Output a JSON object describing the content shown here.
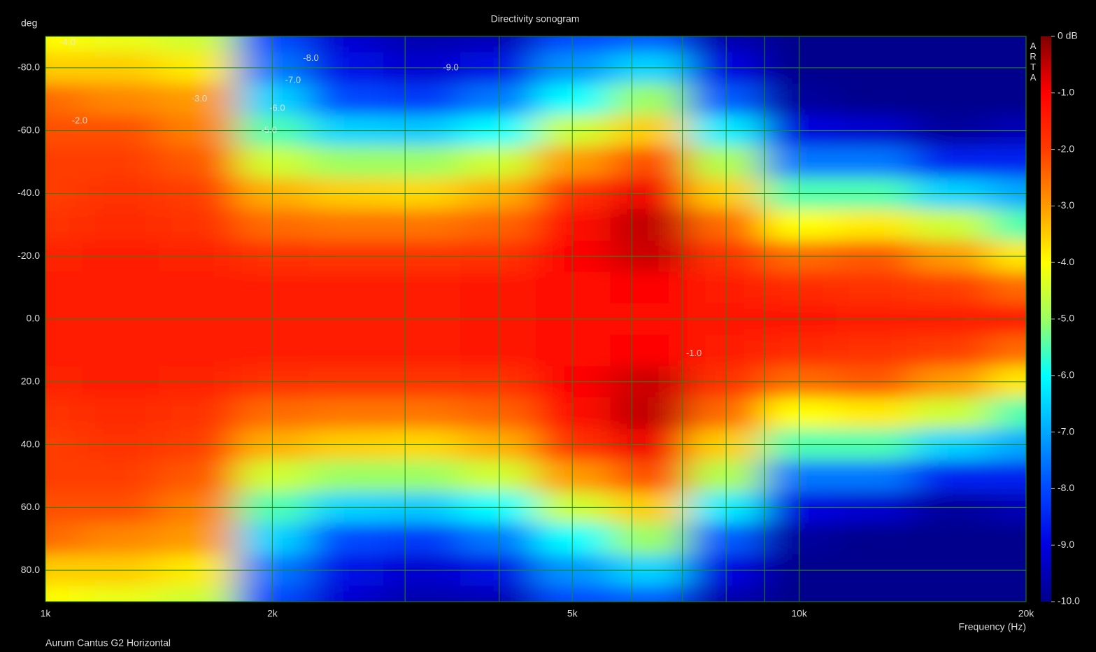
{
  "chart_data": {
    "type": "heatmap",
    "title": "Directivity sonogram",
    "xlabel": "Frequency (Hz)",
    "ylabel": "deg",
    "footnote": "Aurum Cantus G2 Horizontal",
    "watermark": "ARTA",
    "xscale": "log",
    "xlim": [
      1000,
      20000
    ],
    "ylim": [
      -90,
      90
    ],
    "xticks": [
      {
        "value": 1000,
        "label": "1k"
      },
      {
        "value": 2000,
        "label": "2k"
      },
      {
        "value": 5000,
        "label": "5k"
      },
      {
        "value": 10000,
        "label": "10k"
      },
      {
        "value": 20000,
        "label": "20k"
      }
    ],
    "xminor": [
      3000,
      4000,
      6000,
      7000,
      8000,
      9000
    ],
    "yticks": [
      {
        "value": -80,
        "label": "-80.0"
      },
      {
        "value": -60,
        "label": "-60.0"
      },
      {
        "value": -40,
        "label": "-40.0"
      },
      {
        "value": -20,
        "label": "-20.0"
      },
      {
        "value": 0,
        "label": "0.0"
      },
      {
        "value": 20,
        "label": "20.0"
      },
      {
        "value": 40,
        "label": "40.0"
      },
      {
        "value": 60,
        "label": "60.0"
      },
      {
        "value": 80,
        "label": "80.0"
      }
    ],
    "grid": true,
    "grid_color": "#1f8a1f",
    "x": [
      1000,
      1250,
      1600,
      2000,
      2500,
      3150,
      4000,
      5000,
      6300,
      8000,
      10000,
      12500,
      16000,
      20000
    ],
    "y": [
      -90,
      -80,
      -70,
      -60,
      -50,
      -40,
      -30,
      -20,
      -10,
      0,
      10,
      20,
      30,
      40,
      50,
      60,
      70,
      80,
      90
    ],
    "z": [
      [
        -4,
        -4.2,
        -4.5,
        -8,
        -9.2,
        -9.6,
        -9.5,
        -8,
        -7.8,
        -9.6,
        -10,
        -10,
        -10,
        -10
      ],
      [
        -3.5,
        -3.5,
        -3.8,
        -7.5,
        -8.8,
        -9.2,
        -8.8,
        -7.2,
        -6.5,
        -9,
        -10,
        -10,
        -10,
        -10
      ],
      [
        -2.5,
        -2.8,
        -3,
        -6.5,
        -8,
        -8.2,
        -7.5,
        -6,
        -5,
        -7.8,
        -9.8,
        -10,
        -10,
        -10
      ],
      [
        -2.2,
        -2.2,
        -2.7,
        -5.5,
        -6.5,
        -6.6,
        -6,
        -4.5,
        -3.5,
        -6.2,
        -9,
        -9.2,
        -9.8,
        -9.5
      ],
      [
        -2,
        -2,
        -2.3,
        -4.5,
        -5,
        -5,
        -4.5,
        -3,
        -2.2,
        -4.8,
        -7.5,
        -7.5,
        -8.5,
        -8.5
      ],
      [
        -2,
        -1.8,
        -2,
        -3.2,
        -3.5,
        -3.6,
        -3.2,
        -1.8,
        -0.9,
        -3.5,
        -5.5,
        -5.5,
        -6.5,
        -7
      ],
      [
        -1.8,
        -1.7,
        -1.8,
        -2.5,
        -2.6,
        -2.6,
        -2.4,
        -1.2,
        -0.5,
        -2.5,
        -4,
        -3.8,
        -4.5,
        -5.5
      ],
      [
        -1.6,
        -1.5,
        -1.6,
        -1.8,
        -1.9,
        -1.9,
        -1.8,
        -1.1,
        -0.6,
        -1.8,
        -2.5,
        -2.3,
        -3,
        -3.8
      ],
      [
        -1.5,
        -1.5,
        -1.5,
        -1.5,
        -1.5,
        -1.5,
        -1.4,
        -1.2,
        -1,
        -1.5,
        -1.7,
        -1.8,
        -2,
        -2.5
      ],
      [
        -1.5,
        -1.5,
        -1.5,
        -1.5,
        -1.5,
        -1.5,
        -1.3,
        -1.2,
        -1.2,
        -1.3,
        -1.4,
        -1.5,
        -1.5,
        -1.5
      ],
      [
        -1.5,
        -1.5,
        -1.5,
        -1.5,
        -1.5,
        -1.5,
        -1.4,
        -1.2,
        -1,
        -1.5,
        -1.7,
        -1.8,
        -2,
        -2.5
      ],
      [
        -1.6,
        -1.5,
        -1.6,
        -1.8,
        -1.9,
        -1.9,
        -1.8,
        -1.1,
        -0.6,
        -1.8,
        -2.5,
        -2.3,
        -3,
        -3.8
      ],
      [
        -1.8,
        -1.7,
        -1.8,
        -2.5,
        -2.6,
        -2.6,
        -2.4,
        -1.2,
        -0.5,
        -2.5,
        -4,
        -3.8,
        -4.5,
        -5.5
      ],
      [
        -2,
        -1.8,
        -2,
        -3.2,
        -3.5,
        -3.6,
        -3.2,
        -1.8,
        -0.9,
        -3.5,
        -5.5,
        -5.5,
        -6.5,
        -7
      ],
      [
        -2,
        -2,
        -2.3,
        -4.5,
        -5,
        -5,
        -4.5,
        -3,
        -2.2,
        -4.8,
        -7.5,
        -7.5,
        -8.5,
        -8.5
      ],
      [
        -2.2,
        -2.2,
        -2.7,
        -5.5,
        -6.5,
        -6.6,
        -6,
        -4.5,
        -3.5,
        -6.2,
        -9,
        -9.2,
        -9.8,
        -9.5
      ],
      [
        -2.5,
        -2.8,
        -3,
        -6.5,
        -8,
        -8.2,
        -7.5,
        -6,
        -5,
        -7.8,
        -9.8,
        -10,
        -10,
        -10
      ],
      [
        -3.5,
        -3.5,
        -3.8,
        -7.5,
        -8.8,
        -9.2,
        -8.8,
        -7.2,
        -6.5,
        -9,
        -10,
        -10,
        -10,
        -10
      ],
      [
        -4,
        -4.2,
        -4.5,
        -8,
        -9.2,
        -9.6,
        -9.5,
        -8,
        -7.8,
        -9.6,
        -10,
        -10,
        -10,
        -10
      ]
    ],
    "colorbar_lim": [
      -10,
      0
    ],
    "colorbar_ticks": [
      {
        "value": 0,
        "label": "0 dB"
      },
      {
        "value": -1,
        "label": "-1.0"
      },
      {
        "value": -2,
        "label": "-2.0"
      },
      {
        "value": -3,
        "label": "-3.0"
      },
      {
        "value": -4,
        "label": "-4.0"
      },
      {
        "value": -5,
        "label": "-5.0"
      },
      {
        "value": -6,
        "label": "-6.0"
      },
      {
        "value": -7,
        "label": "-7.0"
      },
      {
        "value": -8,
        "label": "-8.0"
      },
      {
        "value": -9,
        "label": "-9.0"
      },
      {
        "value": -10,
        "label": "-10.0"
      }
    ],
    "colors": [
      "#800000",
      "#ff0000",
      "#ff3c00",
      "#ff9a00",
      "#ffff00",
      "#9cff62",
      "#00ffff",
      "#00a8ff",
      "#0048ff",
      "#0000e0",
      "#00008c"
    ],
    "annotations": [
      {
        "text": "-4.0",
        "x": 1070,
        "y": -88
      },
      {
        "text": "-8.0",
        "x": 2250,
        "y": -83
      },
      {
        "text": "-7.0",
        "x": 2130,
        "y": -76
      },
      {
        "text": "-9.0",
        "x": 3450,
        "y": -80
      },
      {
        "text": "-6.0",
        "x": 2030,
        "y": -67
      },
      {
        "text": "-5.0",
        "x": 1980,
        "y": -60
      },
      {
        "text": "-3.0",
        "x": 1600,
        "y": -70
      },
      {
        "text": "-2.0",
        "x": 1110,
        "y": -63
      },
      {
        "text": "-1.0",
        "x": 7250,
        "y": 11
      }
    ]
  }
}
